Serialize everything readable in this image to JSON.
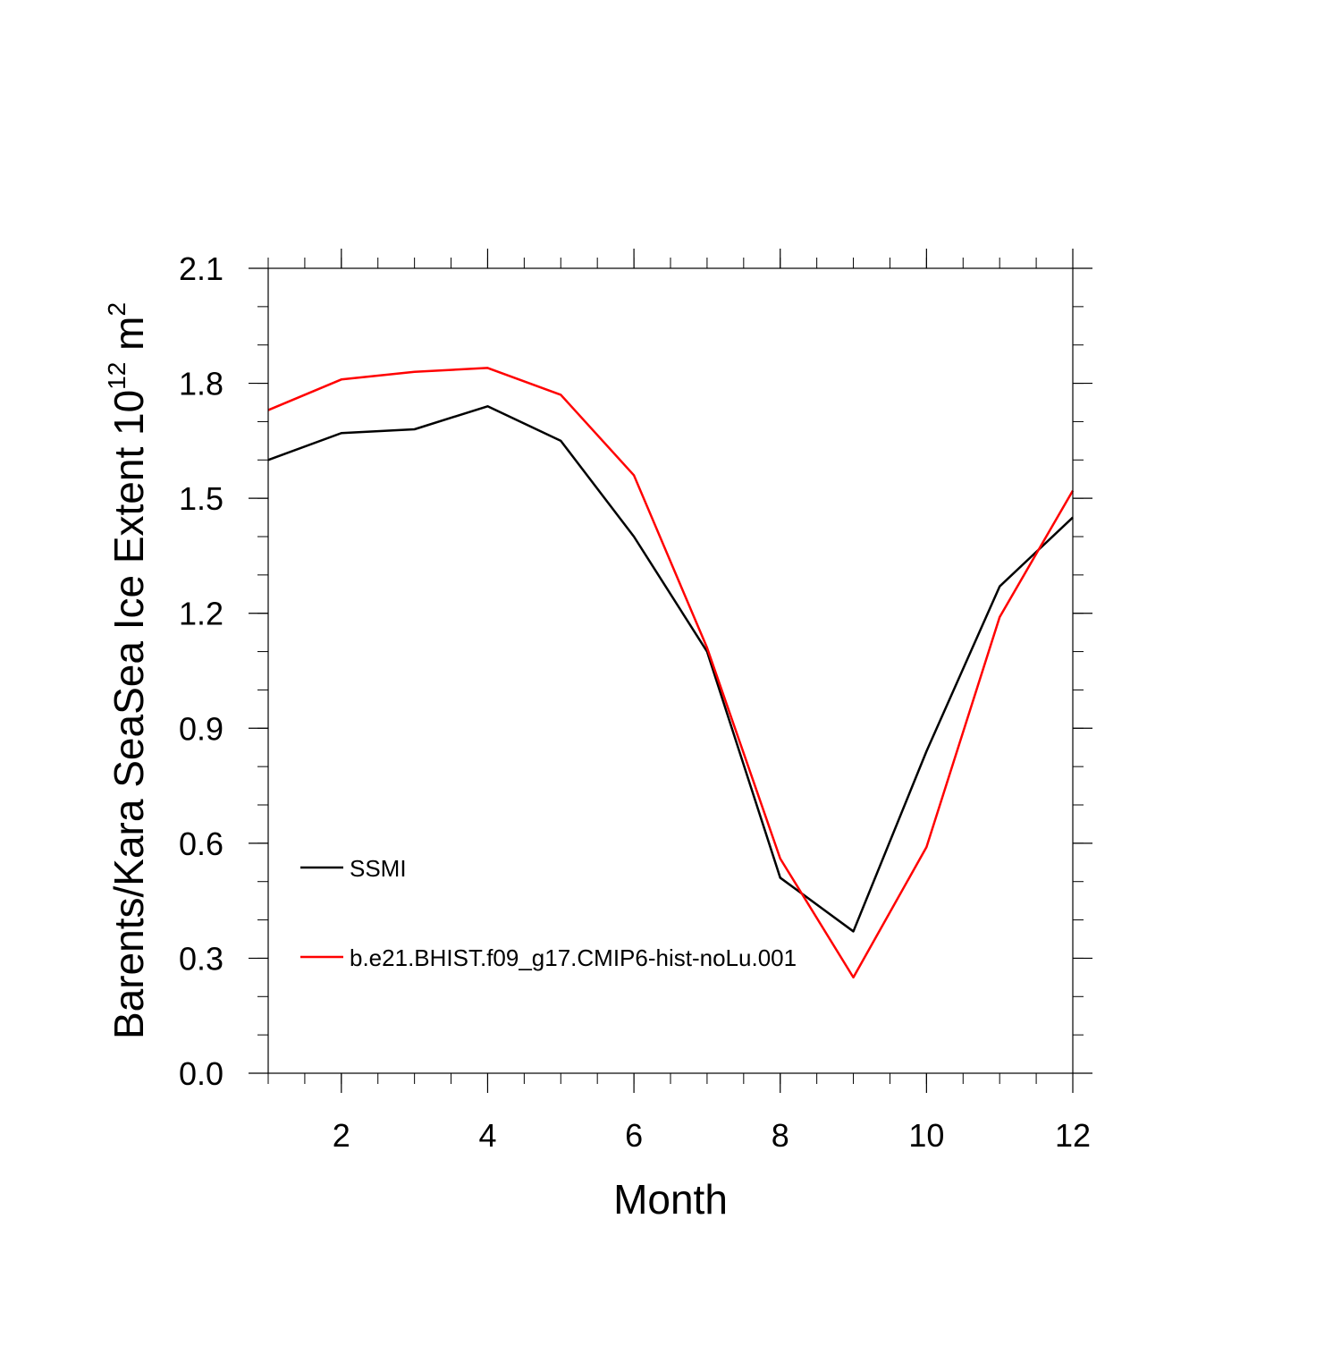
{
  "chart_data": {
    "type": "line",
    "xlabel": "Month",
    "ylabel_main": "Barents/Kara SeaSea Ice Extent 10",
    "ylabel_sup": "12",
    "ylabel_unit": " m",
    "ylabel_unit_sup": "2",
    "xlim": [
      1,
      12
    ],
    "ylim": [
      0.0,
      2.1
    ],
    "xticks": [
      2,
      4,
      6,
      8,
      10,
      12
    ],
    "yticks": [
      "0.0",
      "0.3",
      "0.6",
      "0.9",
      "1.2",
      "1.5",
      "1.8",
      "2.1"
    ],
    "ytick_values": [
      0.0,
      0.3,
      0.6,
      0.9,
      1.2,
      1.5,
      1.8,
      2.1
    ],
    "x": [
      1,
      2,
      3,
      4,
      5,
      6,
      7,
      8,
      9,
      10,
      11,
      12
    ],
    "legend_position": "lower-left",
    "series": [
      {
        "name": "SSMI",
        "color": "#000000",
        "values": [
          1.6,
          1.67,
          1.68,
          1.74,
          1.65,
          1.4,
          1.1,
          0.51,
          0.37,
          0.84,
          1.27,
          1.45
        ]
      },
      {
        "name": "b.e21.BHIST.f09_g17.CMIP6-hist-noLu.001",
        "color": "#ff0000",
        "values": [
          1.73,
          1.81,
          1.83,
          1.84,
          1.77,
          1.56,
          1.11,
          0.56,
          0.25,
          0.59,
          1.19,
          1.52
        ]
      }
    ]
  }
}
